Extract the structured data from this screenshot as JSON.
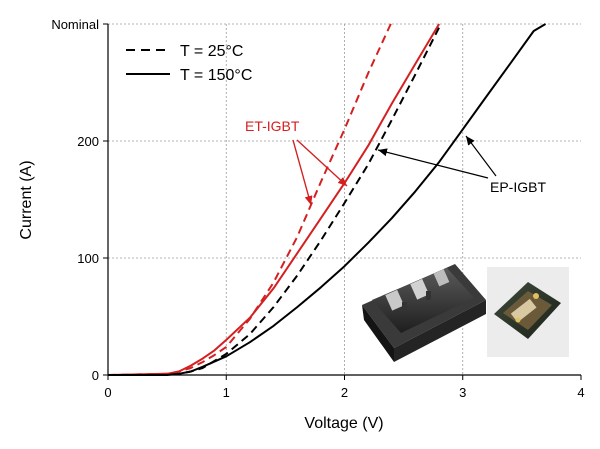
{
  "chart_data": {
    "type": "line",
    "title": "",
    "xlabel": "Voltage (V)",
    "ylabel": "Current (A)",
    "xlim": [
      0,
      4
    ],
    "ylim": [
      0,
      300
    ],
    "xticks": [
      0,
      1,
      2,
      3,
      4
    ],
    "yticks": [
      {
        "value": 0,
        "label": "0"
      },
      {
        "value": 100,
        "label": "100"
      },
      {
        "value": 200,
        "label": "200"
      },
      {
        "value": 300,
        "label": "Nominal"
      }
    ],
    "grid": true,
    "legend_position": "top-left",
    "legend": [
      {
        "label": "T = 25°C",
        "style": "dashed"
      },
      {
        "label": "T = 150°C",
        "style": "solid"
      }
    ],
    "series": [
      {
        "device": "ET-IGBT",
        "temperature": "25°C",
        "style": "dashed",
        "color": "#d42020",
        "x": [
          0,
          0.5,
          0.6,
          0.7,
          0.8,
          0.9,
          1.0,
          1.2,
          1.4,
          1.6,
          1.8,
          2.0,
          2.2,
          2.4
        ],
        "y": [
          0,
          1,
          3,
          6,
          11,
          17,
          24,
          48,
          79,
          118,
          165,
          210,
          258,
          302
        ]
      },
      {
        "device": "ET-IGBT",
        "temperature": "150°C",
        "style": "solid",
        "color": "#d42020",
        "x": [
          0,
          0.5,
          0.6,
          0.7,
          0.8,
          0.9,
          1.0,
          1.2,
          1.4,
          1.6,
          1.8,
          2.0,
          2.2,
          2.4,
          2.6,
          2.8
        ],
        "y": [
          0,
          1,
          3,
          8,
          14,
          21,
          30,
          49,
          74,
          104,
          134,
          164,
          196,
          232,
          266,
          300
        ]
      },
      {
        "device": "EP-IGBT",
        "temperature": "25°C",
        "style": "dashed",
        "color": "#000000",
        "x": [
          0,
          0.5,
          0.6,
          0.7,
          0.8,
          1.0,
          1.2,
          1.4,
          1.6,
          1.8,
          2.0,
          2.2,
          2.4,
          2.6,
          2.8
        ],
        "y": [
          0,
          0,
          1,
          3,
          6,
          18,
          35,
          58,
          85,
          115,
          147,
          180,
          218,
          257,
          297
        ]
      },
      {
        "device": "EP-IGBT",
        "temperature": "150°C",
        "style": "solid",
        "color": "#000000",
        "x": [
          0,
          0.5,
          0.6,
          0.7,
          0.8,
          1.0,
          1.2,
          1.4,
          1.6,
          1.8,
          2.0,
          2.2,
          2.4,
          2.6,
          2.8,
          3.0,
          3.2,
          3.4,
          3.6,
          3.7
        ],
        "y": [
          0,
          0,
          1,
          3,
          7,
          16,
          28,
          42,
          58,
          75,
          93,
          113,
          134,
          157,
          182,
          210,
          238,
          266,
          294,
          300
        ]
      }
    ],
    "annotations": [
      {
        "text": "ET-IGBT",
        "color": "#d42020"
      },
      {
        "text": "EP-IGBT",
        "color": "#000000"
      }
    ]
  }
}
